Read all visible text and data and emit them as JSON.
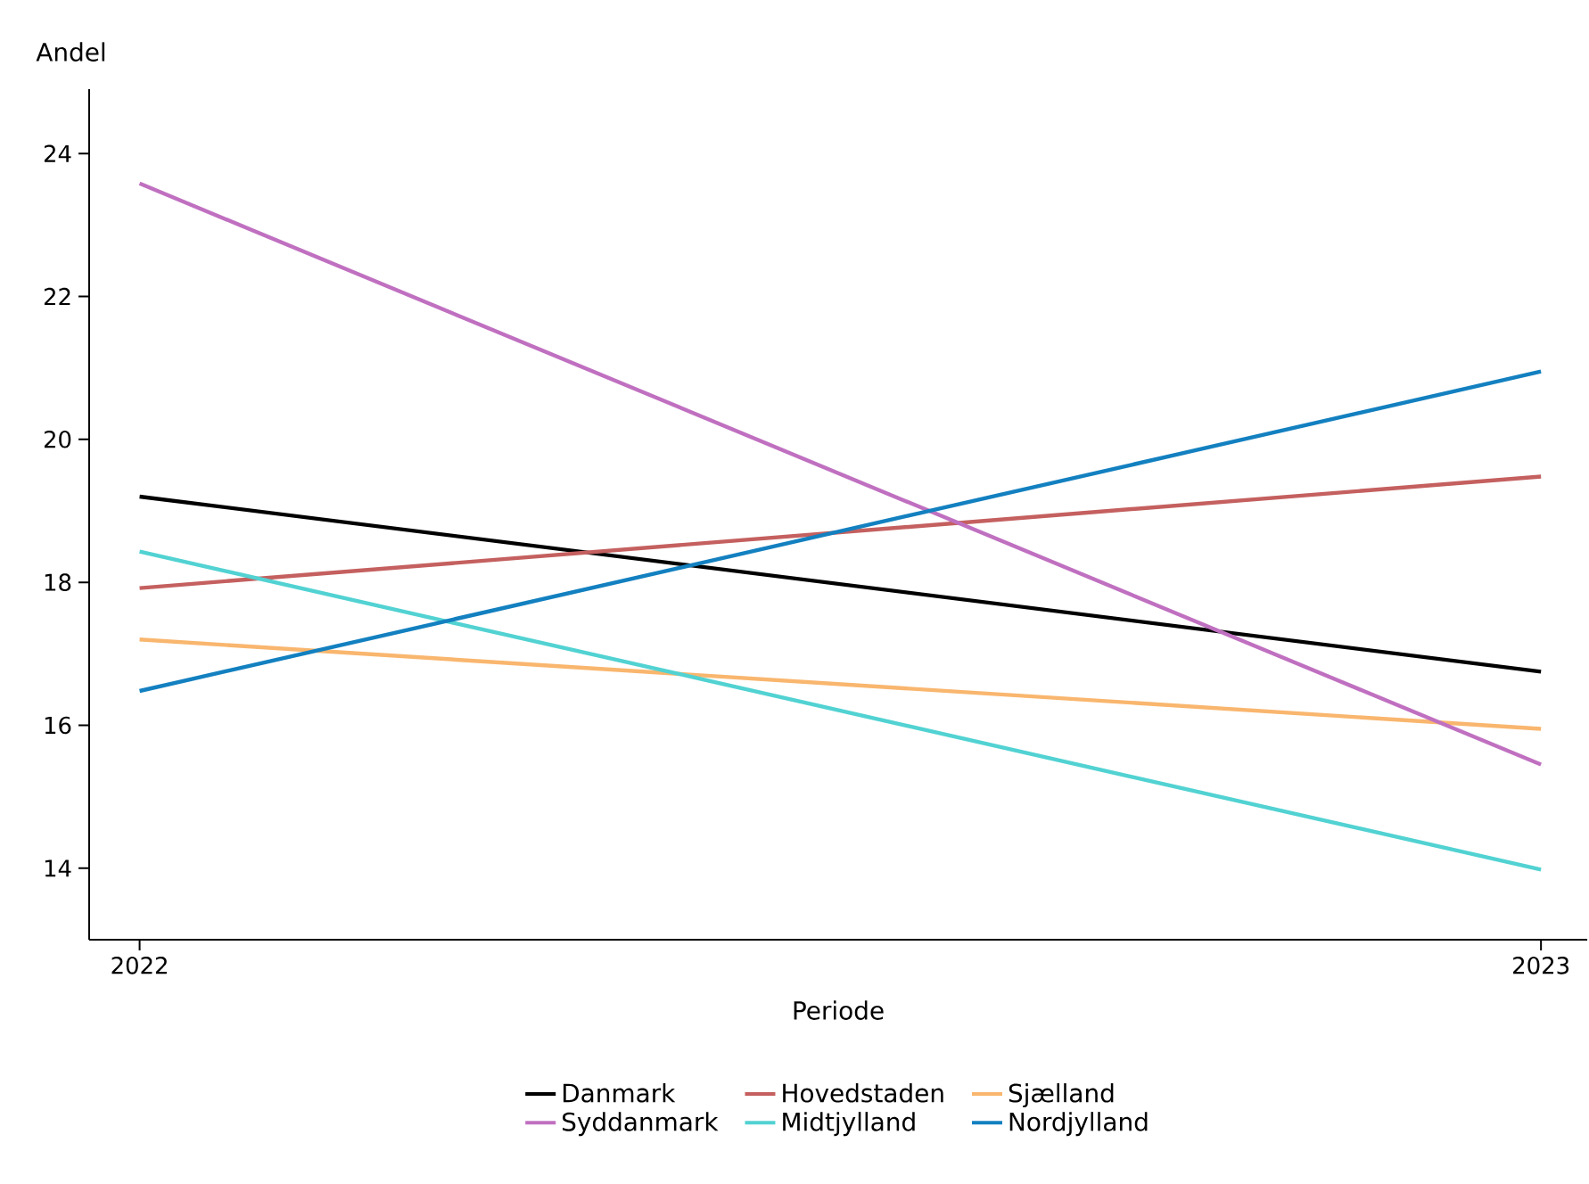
{
  "chart_data": {
    "type": "line",
    "xlabel": "Periode",
    "ylabel": "Andel",
    "x": [
      2022,
      2023
    ],
    "xlim": [
      2021.964,
      2023.033
    ],
    "xticks": [
      2022,
      2023
    ],
    "ylim": [
      13,
      24.9
    ],
    "yticks": [
      14,
      16,
      18,
      20,
      22,
      24
    ],
    "series": [
      {
        "name": "Danmark",
        "color": "#000000",
        "values": [
          19.2,
          16.75
        ]
      },
      {
        "name": "Hovedstaden",
        "color": "#c4605f",
        "values": [
          17.92,
          19.48
        ]
      },
      {
        "name": "Sjælland",
        "color": "#f9b66e",
        "values": [
          17.2,
          15.95
        ]
      },
      {
        "name": "Syddanmark",
        "color": "#c070c0",
        "values": [
          23.58,
          15.45
        ]
      },
      {
        "name": "Midtjylland",
        "color": "#52d2d2",
        "values": [
          18.43,
          13.98
        ]
      },
      {
        "name": "Nordjylland",
        "color": "#1380c0",
        "values": [
          16.48,
          20.95
        ]
      }
    ],
    "legend": "bottom",
    "grid": false,
    "marker": "none",
    "line_style": "solid"
  }
}
